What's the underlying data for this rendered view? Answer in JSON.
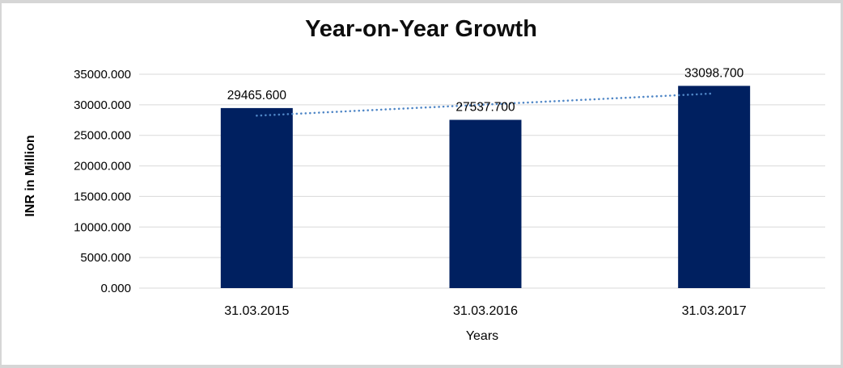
{
  "window": {
    "background": "#ffffff",
    "border_color": "#d6d6d6"
  },
  "chart_data": {
    "type": "bar",
    "title": "Year-on-Year Growth",
    "xlabel": "Years",
    "ylabel": "INR in Million",
    "categories": [
      "31.03.2015",
      "31.03.2016",
      "31.03.2017"
    ],
    "values": [
      29465.6,
      27537.7,
      33098.7
    ],
    "data_labels": [
      "29465.600",
      "27537.700",
      "33098.700"
    ],
    "ylim": [
      0,
      35000
    ],
    "ytick_step": 5000,
    "ytick_labels": [
      "0.000",
      "5000.000",
      "10000.000",
      "15000.000",
      "20000.000",
      "25000.000",
      "30000.000",
      "35000.000"
    ],
    "grid": true,
    "legend": false,
    "bar_color": "#002060",
    "gridline_color": "#d9d9d9",
    "trendline": {
      "style": "dotted",
      "color": "#4f86c6",
      "start_value": 28217.1,
      "end_value": 31850.6
    }
  }
}
